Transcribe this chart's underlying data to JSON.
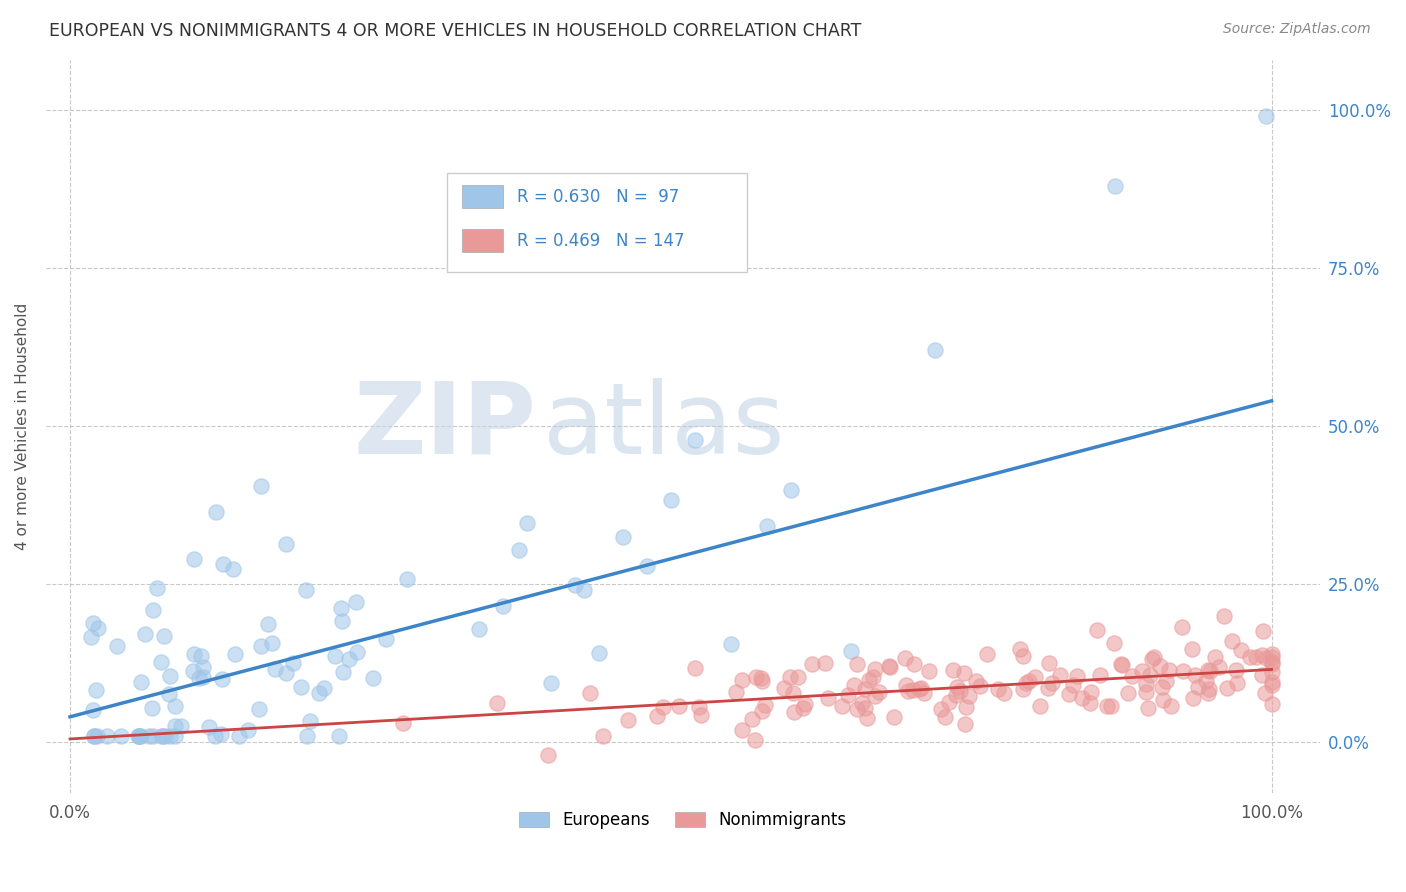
{
  "title": "EUROPEAN VS NONIMMIGRANTS 4 OR MORE VEHICLES IN HOUSEHOLD CORRELATION CHART",
  "source": "Source: ZipAtlas.com",
  "ylabel": "4 or more Vehicles in Household",
  "xtick_labels": [
    "0.0%",
    "100.0%"
  ],
  "ytick_positions": [
    0.0,
    0.25,
    0.5,
    0.75,
    1.0
  ],
  "ytick_labels_right": [
    "0.0%",
    "25.0%",
    "50.0%",
    "75.0%",
    "100.0%"
  ],
  "watermark_zip": "ZIP",
  "watermark_atlas": "atlas",
  "legend_r1": "R = 0.630",
  "legend_n1": "N =  97",
  "legend_r2": "R = 0.469",
  "legend_n2": "N = 147",
  "blue_color": "#9fc5e8",
  "pink_color": "#ea9999",
  "blue_line_color": "#3d85c8",
  "pink_line_color": "#cc4444",
  "title_color": "#333333",
  "source_color": "#888888",
  "label_color": "#3d85c8",
  "background_color": "#ffffff",
  "grid_color": "#bbbbbb",
  "xlim": [
    -0.02,
    1.04
  ],
  "ylim": [
    -0.08,
    1.08
  ],
  "eu_trend_x0": 0.0,
  "eu_trend_y0": 0.04,
  "eu_trend_x1": 1.0,
  "eu_trend_y1": 0.54,
  "ni_trend_x0": 0.0,
  "ni_trend_y0": 0.005,
  "ni_trend_x1": 1.0,
  "ni_trend_y1": 0.115
}
